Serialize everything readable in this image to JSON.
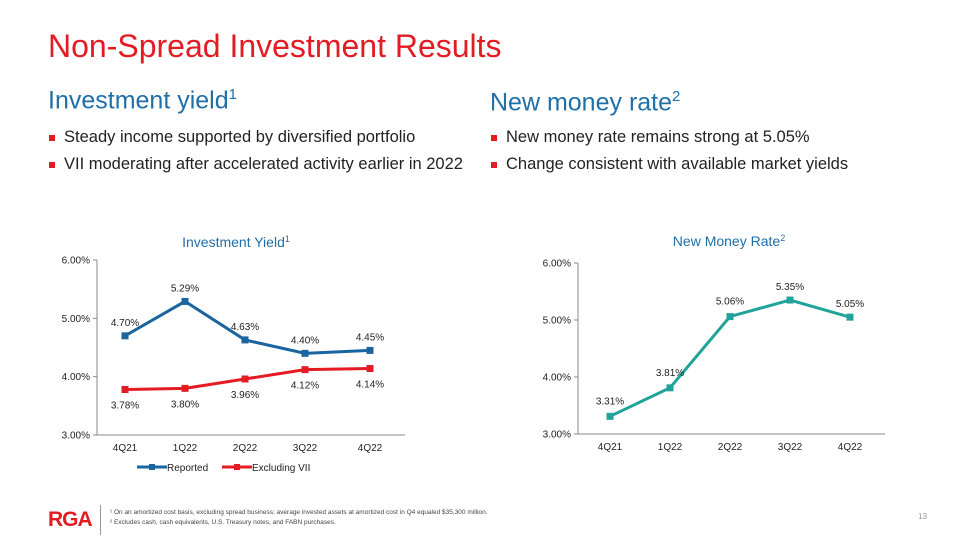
{
  "title": "Non-Spread Investment Results",
  "left": {
    "heading": "Investment yield",
    "heading_sup": "1",
    "bullets": [
      "Steady income supported by diversified portfolio",
      "VII moderating after accelerated activity earlier in 2022"
    ]
  },
  "right": {
    "heading": "New money rate",
    "heading_sup": "2",
    "bullets": [
      "New money rate remains strong at 5.05%",
      "Change consistent with available market yields"
    ]
  },
  "chart_data": [
    {
      "type": "line",
      "title": "Investment  Yield",
      "title_sup": "1",
      "categories": [
        "4Q21",
        "1Q22",
        "2Q22",
        "3Q22",
        "4Q22"
      ],
      "ylim": [
        3,
        6
      ],
      "yticks": [
        "3.00%",
        "4.00%",
        "5.00%",
        "6.00%"
      ],
      "legend_position": "bottom",
      "series": [
        {
          "name": "Reported",
          "color": "#1a64a0",
          "values": [
            4.7,
            5.29,
            4.63,
            4.4,
            4.45
          ],
          "labels": [
            "4.70%",
            "5.29%",
            "4.63%",
            "4.40%",
            "4.45%"
          ]
        },
        {
          "name": "Excluding VII",
          "color": "#e31b23",
          "values": [
            3.78,
            3.8,
            3.96,
            4.12,
            4.14
          ],
          "labels": [
            "3.78%",
            "3.80%",
            "3.96%",
            "4.12%",
            "4.14%"
          ]
        }
      ]
    },
    {
      "type": "line",
      "title": "New Money Rate",
      "title_sup": "2",
      "categories": [
        "4Q21",
        "1Q22",
        "2Q22",
        "3Q22",
        "4Q22"
      ],
      "ylim": [
        3,
        6
      ],
      "yticks": [
        "3.00%",
        "4.00%",
        "5.00%",
        "6.00%"
      ],
      "series": [
        {
          "color": "#1fa39a",
          "values": [
            3.31,
            3.81,
            5.06,
            5.35,
            5.05
          ],
          "labels": [
            "3.31%",
            "3.81%",
            "5.06%",
            "5.35%",
            "5.05%"
          ]
        }
      ]
    }
  ],
  "footer": {
    "logo": "RGA",
    "footnotes": [
      "¹ On an amortized cost basis, excluding spread business; average invested assets at amortized cost in Q4 equaled $35,300 million.",
      "² Excludes cash, cash equivalents, U.S. Treasury notes, and FABN purchases."
    ],
    "page_number": "13"
  }
}
